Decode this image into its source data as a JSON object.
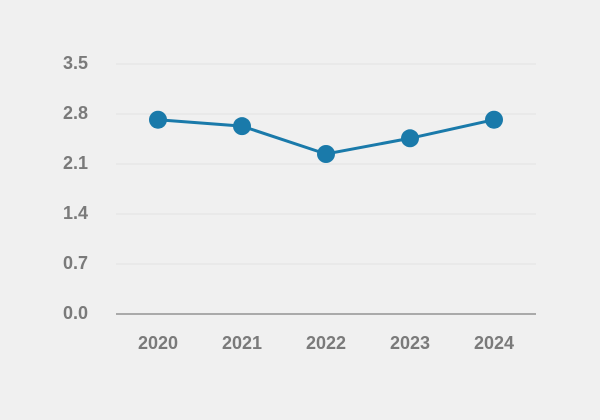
{
  "chart_data": {
    "type": "line",
    "categories": [
      "2020",
      "2021",
      "2022",
      "2023",
      "2024"
    ],
    "values": [
      2.72,
      2.63,
      2.24,
      2.46,
      2.72
    ],
    "color": "#1a7aaa",
    "ylim": [
      0,
      3.5
    ],
    "yticks": [
      {
        "value": 0,
        "label": "0.0"
      },
      0.7,
      1.4,
      2.1,
      2.8,
      3.5
    ],
    "grid": true
  }
}
